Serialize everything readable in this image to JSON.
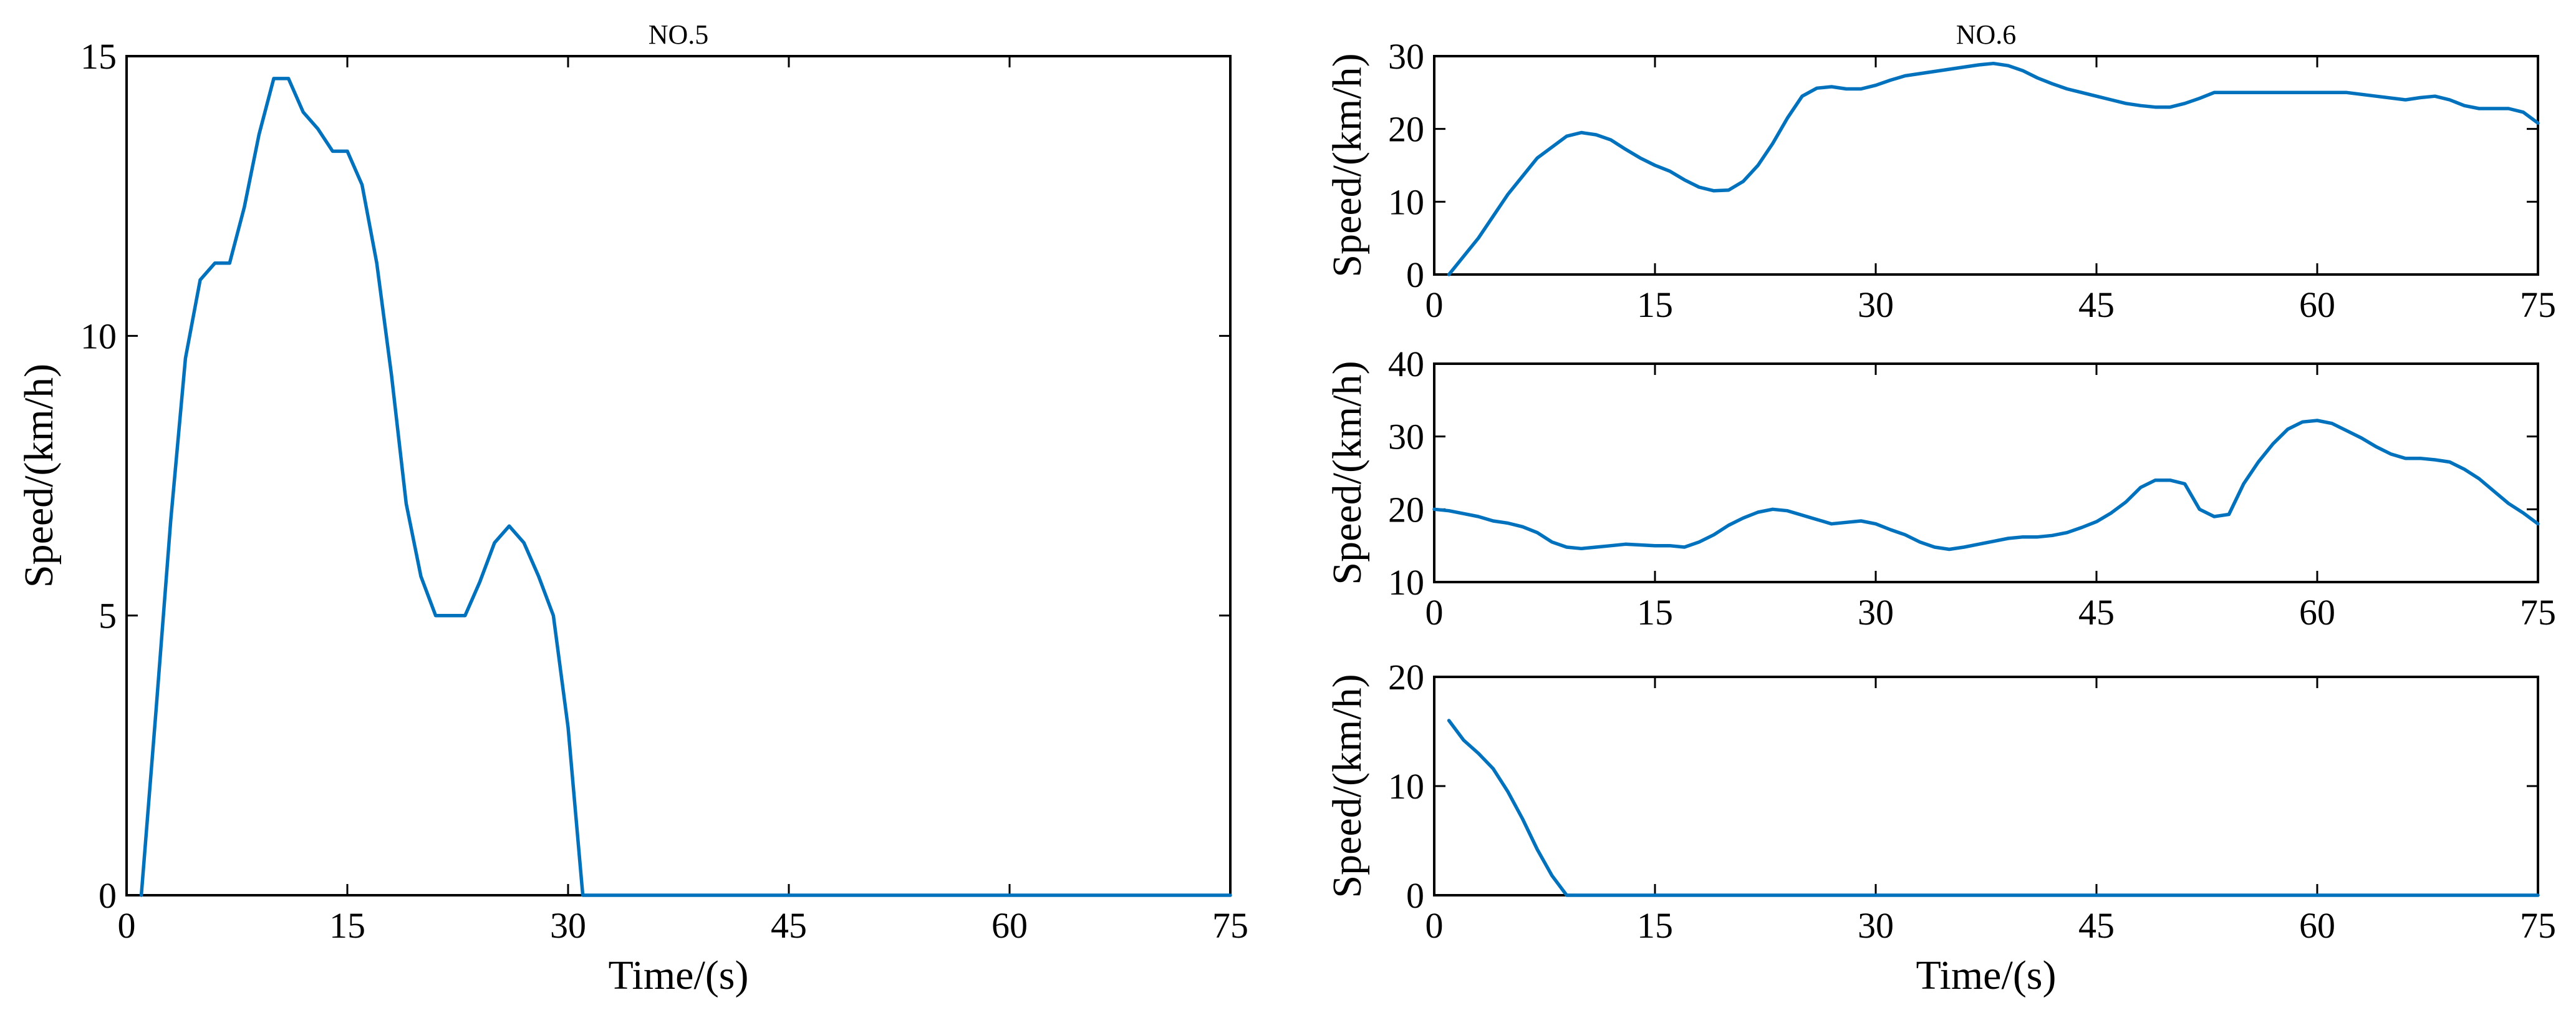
{
  "colors": {
    "series": "#0072BD",
    "axis": "#000000",
    "background": "#FFFFFF"
  },
  "chart_data": [
    {
      "type": "line",
      "title": "NO.5",
      "xlabel": "Time/(s)",
      "ylabel": "Speed/(km/h)",
      "xlim": [
        0,
        75
      ],
      "ylim": [
        0,
        15
      ],
      "xticks": [
        0,
        15,
        30,
        45,
        60,
        75
      ],
      "yticks": [
        0,
        5,
        10,
        15
      ],
      "grid": false,
      "series": [
        {
          "x": [
            1,
            2,
            3,
            4,
            5,
            6,
            7,
            8,
            9,
            10,
            11,
            12,
            13,
            14,
            15,
            16,
            17,
            18,
            19,
            20,
            21,
            22,
            23,
            24,
            25,
            26,
            27,
            28,
            29,
            30,
            31,
            32,
            40,
            50,
            60,
            75
          ],
          "y": [
            0,
            3.3,
            6.7,
            9.6,
            11,
            11.3,
            11.3,
            12.3,
            13.6,
            14.6,
            14.6,
            14,
            13.7,
            13.3,
            13.3,
            12.7,
            11.3,
            9.3,
            7,
            5.7,
            5,
            5,
            5,
            5.6,
            6.3,
            6.6,
            6.3,
            5.7,
            5,
            3,
            0,
            0,
            0,
            0,
            0,
            0
          ]
        }
      ]
    },
    {
      "type": "line",
      "title": "NO.6",
      "xlabel": "",
      "ylabel": "Speed/(km/h)",
      "xlim": [
        0,
        75
      ],
      "ylim": [
        0,
        30
      ],
      "xticks": [
        0,
        15,
        30,
        45,
        60,
        75
      ],
      "yticks": [
        0,
        10,
        20,
        30
      ],
      "grid": false,
      "series": [
        {
          "x": [
            1,
            2,
            3,
            4,
            5,
            6,
            7,
            8,
            9,
            10,
            11,
            12,
            13,
            14,
            15,
            16,
            17,
            18,
            19,
            20,
            21,
            22,
            23,
            24,
            25,
            26,
            27,
            28,
            29,
            30,
            31,
            32,
            33,
            34,
            35,
            36,
            37,
            38,
            39,
            40,
            41,
            42,
            43,
            44,
            45,
            46,
            47,
            48,
            49,
            50,
            51,
            52,
            53,
            55,
            58,
            60,
            62,
            64,
            66,
            67,
            68,
            69,
            70,
            71,
            72,
            73,
            74,
            75
          ],
          "y": [
            0,
            2.5,
            5,
            8,
            11,
            13.5,
            16,
            17.5,
            19,
            19.5,
            19.2,
            18.5,
            17.2,
            16,
            15,
            14.2,
            13,
            12,
            11.5,
            11.6,
            12.8,
            15,
            18,
            21.5,
            24.5,
            25.6,
            25.8,
            25.5,
            25.5,
            26,
            26.7,
            27.3,
            27.6,
            27.9,
            28.2,
            28.5,
            28.8,
            29,
            28.7,
            28,
            27,
            26.2,
            25.5,
            25,
            24.5,
            24,
            23.5,
            23.2,
            23,
            23,
            23.5,
            24.2,
            25,
            25,
            25,
            25,
            25,
            24.5,
            24,
            24.3,
            24.5,
            24,
            23.2,
            22.8,
            22.8,
            22.8,
            22.3,
            20.8
          ]
        }
      ]
    },
    {
      "type": "line",
      "title": "",
      "xlabel": "",
      "ylabel": "Speed/(km/h)",
      "xlim": [
        0,
        75
      ],
      "ylim": [
        10,
        40
      ],
      "xticks": [
        0,
        15,
        30,
        45,
        60,
        75
      ],
      "yticks": [
        10,
        20,
        30,
        40
      ],
      "grid": false,
      "series": [
        {
          "x": [
            0,
            1,
            2,
            3,
            4,
            5,
            6,
            7,
            8,
            9,
            10,
            11,
            12,
            13,
            14,
            15,
            16,
            17,
            18,
            19,
            20,
            21,
            22,
            23,
            24,
            25,
            26,
            27,
            28,
            29,
            30,
            31,
            32,
            33,
            34,
            35,
            36,
            37,
            38,
            39,
            40,
            41,
            42,
            43,
            44,
            45,
            46,
            47,
            48,
            49,
            50,
            51,
            52,
            53,
            54,
            55,
            56,
            57,
            58,
            59,
            60,
            61,
            62,
            63,
            64,
            65,
            66,
            67,
            68,
            69,
            70,
            71,
            72,
            73,
            74,
            75
          ],
          "y": [
            20,
            19.8,
            19.4,
            19,
            18.4,
            18.1,
            17.6,
            16.8,
            15.5,
            14.8,
            14.6,
            14.8,
            15,
            15.2,
            15.1,
            15,
            15,
            14.8,
            15.5,
            16.5,
            17.8,
            18.8,
            19.6,
            20,
            19.8,
            19.2,
            18.6,
            18,
            18.2,
            18.4,
            18,
            17.2,
            16.5,
            15.5,
            14.8,
            14.5,
            14.8,
            15.2,
            15.6,
            16,
            16.2,
            16.2,
            16.4,
            16.8,
            17.5,
            18.3,
            19.5,
            21,
            23,
            24,
            24,
            23.5,
            20,
            19,
            19.3,
            23.5,
            26.5,
            29,
            31,
            32,
            32.2,
            31.8,
            30.8,
            29.8,
            28.6,
            27.6,
            27,
            27,
            26.8,
            26.5,
            25.5,
            24.2,
            22.5,
            20.8,
            19.5,
            18
          ]
        }
      ]
    },
    {
      "type": "line",
      "title": "",
      "xlabel": "Time/(s)",
      "ylabel": "Speed/(km/h)",
      "xlim": [
        0,
        75
      ],
      "ylim": [
        0,
        20
      ],
      "xticks": [
        0,
        15,
        30,
        45,
        60,
        75
      ],
      "yticks": [
        0,
        10,
        20
      ],
      "grid": false,
      "series": [
        {
          "x": [
            1,
            2,
            3,
            4,
            5,
            6,
            7,
            8,
            9,
            10,
            20,
            30,
            45,
            60,
            75
          ],
          "y": [
            16,
            14.2,
            13,
            11.6,
            9.5,
            7,
            4.2,
            1.8,
            0,
            0,
            0,
            0,
            0,
            0,
            0
          ]
        }
      ]
    }
  ]
}
